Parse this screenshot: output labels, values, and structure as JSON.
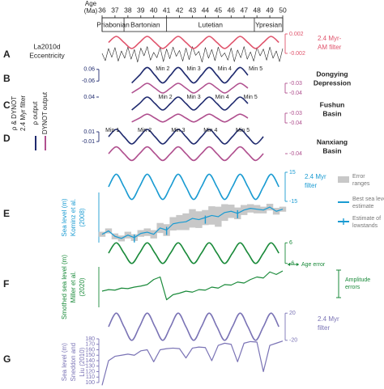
{
  "chart_data": [
    {
      "type": "line",
      "letter": "A",
      "xlabel": [
        "Age",
        "(Ma)"
      ],
      "xlim": [
        36,
        50
      ],
      "xticks": [
        36,
        37,
        38,
        39,
        40,
        41,
        42,
        43,
        44,
        45,
        46,
        47,
        48,
        49,
        50
      ],
      "stages": [
        "Priabonian",
        "Bartonian",
        "Lutetian",
        "Ypresian"
      ],
      "stage_bounds": [
        36,
        37.7,
        41,
        47.8,
        50
      ],
      "label": [
        "La2010d",
        "Eccentricity"
      ],
      "y2lim": [
        -0.004,
        0.003
      ],
      "y2ticks": [
        0.002,
        -0.002
      ],
      "series": [
        {
          "color": "#222222",
          "axis": "y2",
          "x": [
            36,
            36.25,
            36.5,
            36.75,
            37,
            37.25,
            37.5,
            37.75,
            38,
            38.25,
            38.5,
            38.75,
            39,
            39.25,
            39.5,
            39.75,
            40,
            40.25,
            40.5,
            40.75,
            41,
            41.25,
            41.5,
            41.75,
            42,
            42.25,
            42.5,
            42.75,
            43,
            43.25,
            43.5,
            43.75,
            44,
            44.25,
            44.5,
            44.75,
            45,
            45.25,
            45.5,
            45.75,
            46,
            46.25,
            46.5,
            46.75,
            47,
            47.25,
            47.5,
            47.75,
            48,
            48.25,
            48.5,
            48.75,
            49,
            49.25,
            49.5,
            49.75,
            50
          ],
          "values": [
            -0.002,
            -0.0035,
            -0.001,
            -0.0028,
            -0.0008,
            -0.0036,
            -0.0015,
            -0.003,
            -0.0007,
            -0.0032,
            -0.0012,
            -0.0038,
            -0.0009,
            -0.0025,
            -0.0006,
            -0.0034,
            -0.0018,
            -0.0029,
            -0.0008,
            -0.0037,
            -0.0011,
            -0.0031,
            -0.0007,
            -0.0026,
            -0.0014,
            -0.0036,
            -0.0009,
            -0.0033,
            -0.0006,
            -0.0024,
            -0.0016,
            -0.0038,
            -0.0008,
            -0.003,
            -0.0012,
            -0.0035,
            -0.0007,
            -0.0027,
            -0.0019,
            -0.0034,
            -0.0009,
            -0.0037,
            -0.0013,
            -0.0029,
            -0.0006,
            -0.0032,
            -0.0017,
            -0.0036,
            -0.0008,
            -0.0025,
            -0.0011,
            -0.0034,
            -0.0007,
            -0.003,
            -0.0015,
            -0.0037,
            -0.001
          ]
        },
        {
          "name": [
            "2.4 Myr-",
            "AM filter"
          ],
          "color": "#e0546c",
          "axis": "y2",
          "smooth": true,
          "x": [
            36.5,
            37.1,
            37.7,
            38.3,
            38.9,
            39.5,
            40.1,
            40.7,
            41.3,
            41.9,
            42.5,
            43.1,
            43.7,
            44.3,
            44.9,
            45.5,
            46.1,
            46.7,
            47.3,
            47.9,
            48.5,
            49.1,
            49.7
          ],
          "values": [
            0.00025,
            0.0015,
            0.00025,
            -0.001,
            0.00025,
            0.0015,
            0.00025,
            -0.001,
            0.00025,
            0.0015,
            0.00025,
            -0.001,
            0.00025,
            0.0015,
            0.00025,
            -0.001,
            0.00025,
            0.0015,
            0.00025,
            -0.001,
            0.00025,
            0.0015,
            0.00025
          ]
        }
      ]
    },
    {
      "type": "line",
      "letter": "B",
      "site": [
        "Dongying",
        "Depression"
      ],
      "filter_label": [
        "ρ & DYNOT",
        "2.4 Myr filter"
      ],
      "ylim": [
        -0.1,
        0.1
      ],
      "yticks": [
        0.06,
        -0.06
      ],
      "y2lim": [
        -0.045,
        -0.025
      ],
      "y2ticks": [
        -0.03,
        -0.04
      ],
      "annotations": [
        {
          "text": "Min 2",
          "x": 40.7
        },
        {
          "text": "Min 3",
          "x": 43.1
        },
        {
          "text": "Min 4",
          "x": 45.5
        },
        {
          "text": "Min 5",
          "x": 47.9
        }
      ],
      "series": [
        {
          "name": "ρ output",
          "color": "#1f2a6e",
          "axis": "y",
          "smooth": true,
          "x": [
            38.3,
            38.9,
            39.5,
            40.1,
            40.7,
            41.3,
            41.9,
            42.5,
            43.1,
            43.7,
            44.3,
            44.9,
            45.5,
            46.1,
            46.7,
            47.3
          ],
          "values": [
            -0.08,
            0,
            0.08,
            0,
            -0.08,
            0,
            0.08,
            0,
            -0.08,
            0,
            0.08,
            0,
            -0.08,
            0,
            0.08,
            0
          ]
        },
        {
          "name": "DYNOT output",
          "color": "#b0508f",
          "axis": "y2",
          "smooth": true,
          "x": [
            38.3,
            38.9,
            39.5,
            40.1,
            40.7,
            41.3,
            41.9,
            42.5,
            43.1,
            43.7,
            44.3,
            44.9,
            45.5,
            46.1,
            46.7,
            47.3
          ],
          "values": [
            -0.04,
            -0.035,
            -0.03,
            -0.035,
            -0.04,
            -0.035,
            -0.03,
            -0.035,
            -0.04,
            -0.035,
            -0.03,
            -0.035,
            -0.04,
            -0.035,
            -0.03,
            -0.035
          ]
        }
      ]
    },
    {
      "type": "line",
      "letter": "C",
      "site": [
        "Fushun",
        "Basin"
      ],
      "ylim": [
        -0.06,
        0.06
      ],
      "yticks": [
        0.04
      ],
      "y2lim": [
        -0.045,
        -0.025
      ],
      "y2ticks": [
        -0.03,
        -0.04
      ],
      "annotations": [
        {
          "text": "Min 2",
          "x": 40.9
        },
        {
          "text": "Min 3",
          "x": 43.1
        },
        {
          "text": "Min 4",
          "x": 45.3
        },
        {
          "text": "Min 5",
          "x": 47.5
        }
      ],
      "series": [
        {
          "color": "#1f2a6e",
          "axis": "y",
          "smooth": true,
          "x": [
            38.3,
            38.9,
            39.5,
            40.1,
            40.7,
            41.3,
            41.9,
            42.5,
            43.1,
            43.7,
            44.3,
            44.9,
            45.5,
            46.1,
            46.7,
            47.3
          ],
          "values": [
            -0.04,
            0,
            0.04,
            0,
            -0.04,
            0,
            0.04,
            0,
            -0.04,
            0,
            0.04,
            0,
            -0.04,
            0,
            0.04,
            0
          ]
        },
        {
          "color": "#b0508f",
          "axis": "y2",
          "smooth": true,
          "x": [
            38.3,
            38.9,
            39.5,
            40.1,
            40.7,
            41.3,
            41.9,
            42.5,
            43.1,
            43.7,
            44.3,
            44.9,
            45.5,
            46.1,
            46.7,
            47.3
          ],
          "values": [
            -0.039,
            -0.035,
            -0.031,
            -0.035,
            -0.039,
            -0.035,
            -0.031,
            -0.035,
            -0.039,
            -0.035,
            -0.031,
            -0.035,
            -0.039,
            -0.035,
            -0.031,
            -0.035
          ]
        }
      ]
    },
    {
      "type": "line",
      "letter": "D",
      "site": [
        "Nanxiang",
        "Basin"
      ],
      "ylim": [
        -0.02,
        0.02
      ],
      "yticks": [
        0.01,
        -0.01
      ],
      "y2lim": [
        -0.05,
        -0.03
      ],
      "y2ticks": [
        -0.04
      ],
      "annotations": [
        {
          "text": "Min 1",
          "x": 36.8
        },
        {
          "text": "Min 2",
          "x": 39.3
        },
        {
          "text": "Min 3",
          "x": 41.9
        },
        {
          "text": "Min 4",
          "x": 44.4
        },
        {
          "text": "Min 5",
          "x": 46.9
        }
      ],
      "series": [
        {
          "color": "#1f2a6e",
          "axis": "y",
          "smooth": true,
          "x": [
            36.5,
            37.1,
            37.7,
            38.3,
            38.9,
            39.5,
            40.1,
            40.7,
            41.3,
            41.9,
            42.5,
            43.1,
            43.7,
            44.3,
            44.9,
            45.5,
            46.1,
            46.7,
            47.3,
            47.9,
            48.5
          ],
          "values": [
            0,
            0.015,
            0,
            -0.015,
            0,
            0.015,
            0,
            -0.015,
            0,
            0.015,
            0,
            -0.015,
            0,
            0.015,
            0,
            -0.015,
            0,
            0.015,
            0,
            -0.015,
            0
          ]
        },
        {
          "color": "#b0508f",
          "axis": "y2",
          "smooth": true,
          "x": [
            36.5,
            37.1,
            37.7,
            38.3,
            38.9,
            39.5,
            40.1,
            40.7,
            41.3,
            41.9,
            42.5,
            43.1,
            43.7,
            44.3,
            44.9,
            45.5,
            46.1,
            46.7,
            47.3,
            47.9,
            48.5
          ],
          "values": [
            -0.04,
            -0.033,
            -0.04,
            -0.047,
            -0.04,
            -0.033,
            -0.04,
            -0.047,
            -0.04,
            -0.033,
            -0.04,
            -0.047,
            -0.04,
            -0.033,
            -0.04,
            -0.047,
            -0.04,
            -0.033,
            -0.04,
            -0.047,
            -0.04
          ]
        }
      ]
    },
    {
      "type": "line",
      "letter": "E",
      "ylabel": [
        "Sea level (m)",
        "Kominz et al.",
        "(2008)"
      ],
      "ylim": [
        0,
        120
      ],
      "y2lim": [
        -20,
        20
      ],
      "y2ticks": [
        15,
        -15
      ],
      "error_label": [
        "Error",
        "ranges"
      ],
      "error_color": "#c8c8c8",
      "series": [
        {
          "name": [
            "2.4 Myr",
            "filter"
          ],
          "color": "#1a9bd2",
          "axis": "y2",
          "smooth": true,
          "x": [
            36.5,
            37.1,
            37.7,
            38.3,
            38.9,
            39.5,
            40.1,
            40.7,
            41.3,
            41.9,
            42.5,
            43.1,
            43.7,
            44.3,
            44.9,
            45.5,
            46.1,
            46.7,
            47.3,
            47.9,
            48.5,
            49.1,
            49.7
          ],
          "values": [
            0,
            13,
            0,
            -13,
            0,
            13,
            0,
            -13,
            0,
            13,
            0,
            -13,
            0,
            13,
            0,
            -13,
            0,
            13,
            0,
            -13,
            0,
            13,
            0
          ]
        },
        {
          "name": [
            "Best sea level",
            "estimate"
          ],
          "color": "#1a9bd2",
          "axis": "y",
          "x": [
            36,
            36.5,
            37,
            37.5,
            38,
            38.5,
            39,
            39.5,
            40,
            40.5,
            41,
            41.5,
            42,
            42.5,
            43,
            43.5,
            44,
            44.5,
            45,
            45.5,
            46,
            46.5,
            47,
            47.5,
            48,
            48.5,
            49,
            49.5,
            50
          ],
          "values": [
            20,
            28,
            15,
            10,
            18,
            12,
            22,
            25,
            20,
            35,
            30,
            45,
            48,
            50,
            58,
            55,
            60,
            65,
            62,
            72,
            75,
            70,
            78,
            82,
            80,
            78,
            85,
            75,
            80
          ],
          "error": [
            6,
            6,
            7,
            7,
            8,
            8,
            8,
            9,
            10,
            12,
            14,
            16,
            18,
            20,
            22,
            20,
            18,
            22,
            24,
            20,
            16,
            14,
            12,
            10,
            10,
            8,
            8,
            8,
            6
          ]
        },
        {
          "name": [
            "Estimate of",
            "lowstands"
          ],
          "color": "#1a9bd2",
          "axis": "y",
          "marker": "tick",
          "x": [
            38.5,
            41,
            44,
            46.5
          ],
          "values": [
            10,
            28,
            55,
            68
          ]
        }
      ]
    },
    {
      "type": "line",
      "letter": "F",
      "ylabel": [
        "Smothed sea level (m)",
        "Miller et al.",
        "(2020)"
      ],
      "ylim": [
        -20,
        60
      ],
      "y2lim": [
        -8,
        8
      ],
      "y2ticks": [
        6,
        -6
      ],
      "age_error_label": "Age error",
      "amplitude_error_label": [
        "Amplitude",
        "errors"
      ],
      "series": [
        {
          "color": "#1a8a3a",
          "axis": "y2",
          "smooth": true,
          "x": [
            36.5,
            37.1,
            37.7,
            38.3,
            38.9,
            39.5,
            40.1,
            40.7,
            41.3,
            41.9,
            42.5,
            43.1,
            43.7,
            44.3,
            44.9,
            45.5,
            46.1,
            46.7,
            47.3,
            47.9,
            48.5,
            49.1,
            49.7
          ],
          "values": [
            0,
            6,
            0,
            -6,
            0,
            6,
            0,
            -6,
            0,
            6,
            0,
            -6,
            0,
            6,
            0,
            -6,
            0,
            6,
            0,
            -6,
            0,
            6,
            0
          ]
        },
        {
          "color": "#1a8a3a",
          "axis": "y",
          "x": [
            36,
            36.5,
            37,
            37.5,
            38,
            38.5,
            39,
            39.5,
            40,
            40.5,
            41,
            41.5,
            42,
            42.5,
            43,
            43.5,
            44,
            44.5,
            45,
            45.5,
            46,
            46.5,
            47,
            47.5,
            48,
            48.5,
            49,
            49.5,
            50
          ],
          "values": [
            12,
            15,
            14,
            18,
            17,
            20,
            22,
            25,
            35,
            40,
            -5,
            5,
            8,
            12,
            10,
            15,
            14,
            20,
            18,
            25,
            24,
            30,
            28,
            35,
            40,
            38,
            50,
            45,
            52
          ]
        }
      ]
    },
    {
      "type": "line",
      "letter": "G",
      "ylabel": [
        "Sea level (m)",
        "Sneddon and",
        "Liu (2010)"
      ],
      "ylim": [
        90,
        185
      ],
      "yticks": [
        180,
        170,
        160,
        150,
        140,
        130,
        120,
        110,
        100
      ],
      "y2lim": [
        -25,
        25
      ],
      "y2ticks": [
        20,
        -20
      ],
      "series": [
        {
          "name": [
            "2.4 Myr",
            "filter"
          ],
          "color": "#7a73b5",
          "axis": "y2",
          "smooth": true,
          "x": [
            36.5,
            37.1,
            37.7,
            38.3,
            38.9,
            39.5,
            40.1,
            40.7,
            41.3,
            41.9,
            42.5,
            43.1,
            43.7,
            44.3,
            44.9,
            45.5,
            46.1,
            46.7,
            47.3,
            47.9,
            48.5,
            49.1,
            49.7
          ],
          "values": [
            0,
            20,
            0,
            -20,
            0,
            20,
            0,
            -20,
            0,
            20,
            0,
            -20,
            0,
            20,
            0,
            -20,
            0,
            20,
            0,
            -20,
            0,
            20,
            0
          ]
        },
        {
          "color": "#7a73b5",
          "axis": "y",
          "x": [
            36,
            36.5,
            37,
            37.5,
            38,
            38.5,
            39,
            39.5,
            40,
            40.5,
            41,
            41.5,
            42,
            42.5,
            43,
            43.5,
            44,
            44.5,
            45,
            45.5,
            46,
            46.5,
            47,
            47.5,
            48,
            48.5,
            49,
            49.5,
            50
          ],
          "values": [
            95,
            140,
            148,
            150,
            152,
            150,
            158,
            160,
            138,
            160,
            162,
            163,
            162,
            145,
            163,
            165,
            164,
            140,
            168,
            172,
            170,
            138,
            172,
            175,
            174,
            120,
            168,
            172,
            176
          ]
        }
      ]
    }
  ]
}
